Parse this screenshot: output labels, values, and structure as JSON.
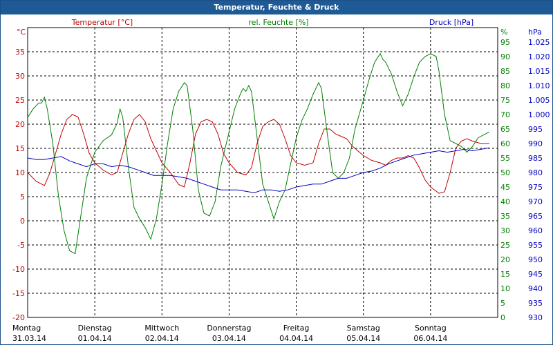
{
  "title": "Temperatur, Feuchte & Druck",
  "colors": {
    "temperature": "#c00000",
    "humidity": "#008000",
    "pressure": "#0000c0",
    "titlebar": "#1e5a96",
    "grid": "#000000",
    "text": "#000000"
  },
  "chart_data": {
    "type": "line",
    "title": "Temperatur, Feuchte & Druck",
    "grid": true,
    "x_axis": {
      "range": [
        "2014-03-31T00:00",
        "2014-04-07T00:00"
      ],
      "ticks": [
        {
          "at": "2014-03-31T00:00",
          "day": "Montag",
          "date": "31.03.14"
        },
        {
          "at": "2014-04-01T00:00",
          "day": "Dienstag",
          "date": "01.04.14"
        },
        {
          "at": "2014-04-02T00:00",
          "day": "Mittwoch",
          "date": "02.04.14"
        },
        {
          "at": "2014-04-03T00:00",
          "day": "Donnerstag",
          "date": "03.04.14"
        },
        {
          "at": "2014-04-04T00:00",
          "day": "Freitag",
          "date": "04.04.14"
        },
        {
          "at": "2014-04-05T00:00",
          "day": "Samstag",
          "date": "05.04.14"
        },
        {
          "at": "2014-04-06T00:00",
          "day": "Sonntag",
          "date": "06.04.14"
        }
      ]
    },
    "axes": [
      {
        "id": "temperature",
        "side": "left",
        "unit": "°C",
        "label": "Temperatur [°C]",
        "min": -20,
        "max": 40,
        "step": 5,
        "last_tick": 35
      },
      {
        "id": "humidity",
        "side": "right",
        "unit": "%",
        "label": "rel. Feuchte [%]",
        "min": 0,
        "max": 100,
        "step": 5,
        "last_tick": 95
      },
      {
        "id": "pressure",
        "side": "right",
        "unit": "hPa",
        "label": "Druck [hPa]",
        "min": 930,
        "max": 1030,
        "step": 5,
        "last_tick": 1025,
        "tick_labels": [
          "930",
          "935",
          "940",
          "945",
          "950",
          "955",
          "960",
          "965",
          "970",
          "975",
          "980",
          "985",
          "990",
          "995",
          "1.000",
          "1.005",
          "1.010",
          "1.015",
          "1.020",
          "1.025"
        ]
      }
    ],
    "series": [
      {
        "name": "Temperatur [°C]",
        "axis": "temperature",
        "points": [
          [
            "2014-03-31T00:00",
            10
          ],
          [
            "2014-03-31T03:00",
            8.2
          ],
          [
            "2014-03-31T06:00",
            7.3
          ],
          [
            "2014-03-31T08:00",
            10
          ],
          [
            "2014-03-31T10:00",
            14
          ],
          [
            "2014-03-31T12:00",
            18
          ],
          [
            "2014-03-31T14:00",
            21
          ],
          [
            "2014-03-31T16:00",
            22
          ],
          [
            "2014-03-31T18:00",
            21.5
          ],
          [
            "2014-03-31T20:00",
            18
          ],
          [
            "2014-03-31T22:00",
            14
          ],
          [
            "2014-04-01T00:00",
            12
          ],
          [
            "2014-04-01T03:00",
            10.5
          ],
          [
            "2014-04-01T06:00",
            9.5
          ],
          [
            "2014-04-01T08:00",
            10
          ],
          [
            "2014-04-01T10:00",
            14
          ],
          [
            "2014-04-01T12:00",
            18
          ],
          [
            "2014-04-01T14:00",
            21
          ],
          [
            "2014-04-01T16:00",
            22
          ],
          [
            "2014-04-01T18:00",
            20.5
          ],
          [
            "2014-04-01T20:00",
            17
          ],
          [
            "2014-04-01T22:00",
            14.5
          ],
          [
            "2014-04-02T00:00",
            12
          ],
          [
            "2014-04-02T03:00",
            10
          ],
          [
            "2014-04-02T06:00",
            7.5
          ],
          [
            "2014-04-02T08:00",
            7
          ],
          [
            "2014-04-02T10:00",
            12
          ],
          [
            "2014-04-02T12:00",
            18
          ],
          [
            "2014-04-02T14:00",
            20.5
          ],
          [
            "2014-04-02T16:00",
            21
          ],
          [
            "2014-04-02T18:00",
            20.5
          ],
          [
            "2014-04-02T20:00",
            18
          ],
          [
            "2014-04-02T22:00",
            14
          ],
          [
            "2014-04-03T00:00",
            12
          ],
          [
            "2014-04-03T03:00",
            10
          ],
          [
            "2014-04-03T06:00",
            9.5
          ],
          [
            "2014-04-03T08:00",
            11
          ],
          [
            "2014-04-03T10:00",
            16
          ],
          [
            "2014-04-03T12:00",
            19.5
          ],
          [
            "2014-04-03T14:00",
            20.5
          ],
          [
            "2014-04-03T16:00",
            21
          ],
          [
            "2014-04-03T18:00",
            20
          ],
          [
            "2014-04-03T20:00",
            17
          ],
          [
            "2014-04-03T22:00",
            13.5
          ],
          [
            "2014-04-04T00:00",
            12
          ],
          [
            "2014-04-04T03:00",
            11.5
          ],
          [
            "2014-04-04T06:00",
            12
          ],
          [
            "2014-04-04T08:00",
            16
          ],
          [
            "2014-04-04T10:00",
            19
          ],
          [
            "2014-04-04T12:00",
            19
          ],
          [
            "2014-04-04T14:00",
            18
          ],
          [
            "2014-04-04T16:00",
            17.5
          ],
          [
            "2014-04-04T18:00",
            17
          ],
          [
            "2014-04-04T20:00",
            15.5
          ],
          [
            "2014-04-04T22:00",
            14.5
          ],
          [
            "2014-04-05T00:00",
            13.5
          ],
          [
            "2014-04-05T03:00",
            12.5
          ],
          [
            "2014-04-05T06:00",
            12
          ],
          [
            "2014-04-05T08:00",
            11.5
          ],
          [
            "2014-04-05T10:00",
            12.5
          ],
          [
            "2014-04-05T12:00",
            13
          ],
          [
            "2014-04-05T14:00",
            13
          ],
          [
            "2014-04-05T16:00",
            13.5
          ],
          [
            "2014-04-05T18:00",
            13
          ],
          [
            "2014-04-05T20:00",
            11
          ],
          [
            "2014-04-05T22:00",
            8.5
          ],
          [
            "2014-04-06T00:00",
            7
          ],
          [
            "2014-04-06T03:00",
            5.7
          ],
          [
            "2014-04-06T05:00",
            6
          ],
          [
            "2014-04-06T07:00",
            10
          ],
          [
            "2014-04-06T09:00",
            15
          ],
          [
            "2014-04-06T11:00",
            16.5
          ],
          [
            "2014-04-06T13:00",
            17
          ],
          [
            "2014-04-06T15:00",
            16.5
          ],
          [
            "2014-04-06T18:00",
            16
          ],
          [
            "2014-04-06T21:00",
            16
          ]
        ]
      },
      {
        "name": "rel. Feuchte [%]",
        "axis": "humidity",
        "points": [
          [
            "2014-03-31T00:00",
            69
          ],
          [
            "2014-03-31T02:00",
            72
          ],
          [
            "2014-03-31T04:00",
            74
          ],
          [
            "2014-03-31T05:00",
            74
          ],
          [
            "2014-03-31T06:00",
            76
          ],
          [
            "2014-03-31T07:00",
            72
          ],
          [
            "2014-03-31T09:00",
            60
          ],
          [
            "2014-03-31T11:00",
            42
          ],
          [
            "2014-03-31T13:00",
            30
          ],
          [
            "2014-03-31T15:00",
            23
          ],
          [
            "2014-03-31T17:00",
            22
          ],
          [
            "2014-03-31T19:00",
            35
          ],
          [
            "2014-03-31T21:00",
            48
          ],
          [
            "2014-04-01T00:00",
            57
          ],
          [
            "2014-04-01T03:00",
            61
          ],
          [
            "2014-04-01T06:00",
            63
          ],
          [
            "2014-04-01T08:00",
            67
          ],
          [
            "2014-04-01T09:00",
            72
          ],
          [
            "2014-04-01T10:00",
            69
          ],
          [
            "2014-04-01T12:00",
            52
          ],
          [
            "2014-04-01T14:00",
            38
          ],
          [
            "2014-04-01T16:00",
            34
          ],
          [
            "2014-04-01T18:00",
            31
          ],
          [
            "2014-04-01T20:00",
            27
          ],
          [
            "2014-04-01T22:00",
            34
          ],
          [
            "2014-04-02T00:00",
            46
          ],
          [
            "2014-04-02T02:00",
            60
          ],
          [
            "2014-04-02T04:00",
            72
          ],
          [
            "2014-04-02T06:00",
            78
          ],
          [
            "2014-04-02T08:00",
            81
          ],
          [
            "2014-04-02T09:00",
            80
          ],
          [
            "2014-04-02T11:00",
            65
          ],
          [
            "2014-04-02T13:00",
            44
          ],
          [
            "2014-04-02T15:00",
            36
          ],
          [
            "2014-04-02T17:00",
            35
          ],
          [
            "2014-04-02T19:00",
            40
          ],
          [
            "2014-04-02T21:00",
            52
          ],
          [
            "2014-04-03T00:00",
            64
          ],
          [
            "2014-04-03T02:00",
            72
          ],
          [
            "2014-04-03T04:00",
            77
          ],
          [
            "2014-04-03T05:00",
            79
          ],
          [
            "2014-04-03T06:00",
            78
          ],
          [
            "2014-04-03T07:00",
            80
          ],
          [
            "2014-04-03T08:00",
            78
          ],
          [
            "2014-04-03T10:00",
            62
          ],
          [
            "2014-04-03T12:00",
            46
          ],
          [
            "2014-04-03T14:00",
            40
          ],
          [
            "2014-04-03T16:00",
            34
          ],
          [
            "2014-04-03T18:00",
            40
          ],
          [
            "2014-04-03T20:00",
            44
          ],
          [
            "2014-04-03T22:00",
            53
          ],
          [
            "2014-04-04T00:00",
            62
          ],
          [
            "2014-04-04T02:00",
            68
          ],
          [
            "2014-04-04T04:00",
            72
          ],
          [
            "2014-04-04T06:00",
            77
          ],
          [
            "2014-04-04T08:00",
            81
          ],
          [
            "2014-04-04T09:00",
            79
          ],
          [
            "2014-04-04T11:00",
            64
          ],
          [
            "2014-04-04T13:00",
            50
          ],
          [
            "2014-04-04T15:00",
            48
          ],
          [
            "2014-04-04T17:00",
            50
          ],
          [
            "2014-04-04T19:00",
            55
          ],
          [
            "2014-04-04T21:00",
            65
          ],
          [
            "2014-04-05T00:00",
            75
          ],
          [
            "2014-04-05T02:00",
            82
          ],
          [
            "2014-04-05T04:00",
            88
          ],
          [
            "2014-04-05T06:00",
            91
          ],
          [
            "2014-04-05T07:00",
            89
          ],
          [
            "2014-04-05T08:00",
            88
          ],
          [
            "2014-04-05T10:00",
            84
          ],
          [
            "2014-04-05T12:00",
            78
          ],
          [
            "2014-04-05T14:00",
            73
          ],
          [
            "2014-04-05T16:00",
            77
          ],
          [
            "2014-04-05T18:00",
            83
          ],
          [
            "2014-04-05T20:00",
            88
          ],
          [
            "2014-04-05T22:00",
            90
          ],
          [
            "2014-04-06T00:00",
            91
          ],
          [
            "2014-04-06T02:00",
            90
          ],
          [
            "2014-04-06T03:00",
            85
          ],
          [
            "2014-04-06T05:00",
            70
          ],
          [
            "2014-04-06T07:00",
            61
          ],
          [
            "2014-04-06T09:00",
            60
          ],
          [
            "2014-04-06T11:00",
            59
          ],
          [
            "2014-04-06T13:00",
            57
          ],
          [
            "2014-04-06T15:00",
            59
          ],
          [
            "2014-04-06T17:00",
            62
          ],
          [
            "2014-04-06T19:00",
            63
          ],
          [
            "2014-04-06T21:00",
            64
          ]
        ]
      },
      {
        "name": "Druck [hPa]",
        "axis": "pressure",
        "points": [
          [
            "2014-03-31T00:00",
            985
          ],
          [
            "2014-03-31T03:00",
            984.5
          ],
          [
            "2014-03-31T06:00",
            984.5
          ],
          [
            "2014-03-31T09:00",
            985
          ],
          [
            "2014-03-31T12:00",
            985.5
          ],
          [
            "2014-03-31T15:00",
            984
          ],
          [
            "2014-03-31T18:00",
            983
          ],
          [
            "2014-03-31T21:00",
            982
          ],
          [
            "2014-04-01T00:00",
            983
          ],
          [
            "2014-04-01T03:00",
            983
          ],
          [
            "2014-04-01T06:00",
            982
          ],
          [
            "2014-04-01T09:00",
            982.5
          ],
          [
            "2014-04-01T12:00",
            982
          ],
          [
            "2014-04-01T15:00",
            981
          ],
          [
            "2014-04-01T18:00",
            980
          ],
          [
            "2014-04-01T21:00",
            979
          ],
          [
            "2014-04-02T00:00",
            979
          ],
          [
            "2014-04-02T03:00",
            979
          ],
          [
            "2014-04-02T06:00",
            978.5
          ],
          [
            "2014-04-02T09:00",
            978
          ],
          [
            "2014-04-02T12:00",
            977
          ],
          [
            "2014-04-02T15:00",
            976
          ],
          [
            "2014-04-02T18:00",
            975
          ],
          [
            "2014-04-02T21:00",
            974
          ],
          [
            "2014-04-03T00:00",
            974
          ],
          [
            "2014-04-03T03:00",
            974
          ],
          [
            "2014-04-03T06:00",
            973.5
          ],
          [
            "2014-04-03T09:00",
            973
          ],
          [
            "2014-04-03T12:00",
            974
          ],
          [
            "2014-04-03T15:00",
            974
          ],
          [
            "2014-04-03T18:00",
            973.5
          ],
          [
            "2014-04-03T21:00",
            974
          ],
          [
            "2014-04-04T00:00",
            975
          ],
          [
            "2014-04-04T03:00",
            975.5
          ],
          [
            "2014-04-04T06:00",
            976
          ],
          [
            "2014-04-04T09:00",
            976
          ],
          [
            "2014-04-04T12:00",
            977
          ],
          [
            "2014-04-04T15:00",
            978
          ],
          [
            "2014-04-04T18:00",
            978
          ],
          [
            "2014-04-04T21:00",
            979
          ],
          [
            "2014-04-05T00:00",
            980
          ],
          [
            "2014-04-05T03:00",
            980.5
          ],
          [
            "2014-04-05T06:00",
            981.5
          ],
          [
            "2014-04-05T09:00",
            983
          ],
          [
            "2014-04-05T12:00",
            984
          ],
          [
            "2014-04-05T15:00",
            985
          ],
          [
            "2014-04-05T18:00",
            986
          ],
          [
            "2014-04-05T21:00",
            986.5
          ],
          [
            "2014-04-06T00:00",
            987
          ],
          [
            "2014-04-06T03:00",
            987.5
          ],
          [
            "2014-04-06T06:00",
            987
          ],
          [
            "2014-04-06T09:00",
            987.5
          ],
          [
            "2014-04-06T12:00",
            988
          ],
          [
            "2014-04-06T15:00",
            987.5
          ],
          [
            "2014-04-06T18:00",
            988
          ],
          [
            "2014-04-06T21:00",
            988.5
          ]
        ]
      }
    ]
  }
}
